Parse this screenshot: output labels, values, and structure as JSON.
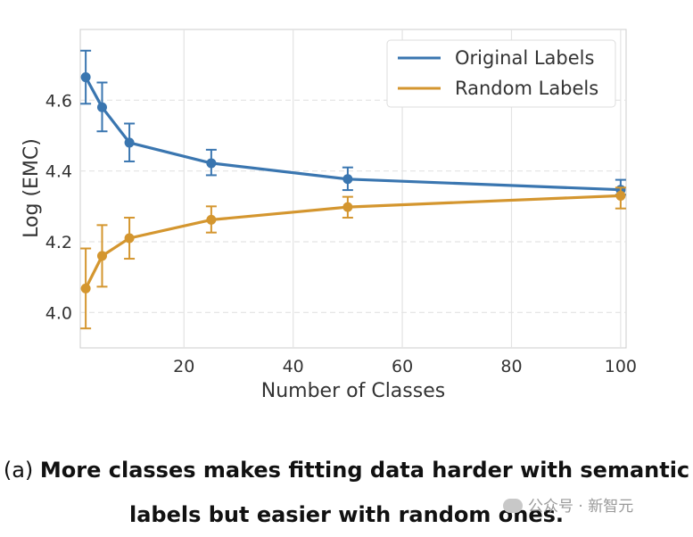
{
  "chart_data": {
    "type": "line",
    "xlabel": "Number of Classes",
    "ylabel": "Log (EMC)",
    "xlim": [
      1,
      101
    ],
    "ylim": [
      3.9,
      4.8
    ],
    "xticks": [
      20,
      40,
      60,
      80,
      100
    ],
    "yticks": [
      4.0,
      4.2,
      4.4,
      4.6
    ],
    "grid": true,
    "legend_position": "top-right",
    "x": [
      2,
      5,
      10,
      25,
      50,
      100
    ],
    "series": [
      {
        "name": "Original Labels",
        "color": "#3a76b0",
        "values": [
          4.665,
          4.58,
          4.48,
          4.422,
          4.377,
          4.347
        ],
        "err_low": [
          4.59,
          4.512,
          4.427,
          4.388,
          4.346,
          4.333
        ],
        "err_high": [
          4.74,
          4.65,
          4.534,
          4.46,
          4.41,
          4.375
        ]
      },
      {
        "name": "Random Labels",
        "color": "#d4962f",
        "values": [
          4.068,
          4.16,
          4.21,
          4.262,
          4.298,
          4.33
        ],
        "err_low": [
          3.955,
          4.073,
          4.152,
          4.226,
          4.268,
          4.294
        ],
        "err_high": [
          4.181,
          4.247,
          4.268,
          4.3,
          4.327,
          4.353
        ]
      }
    ]
  },
  "caption": {
    "prefix": "(a) ",
    "line1": "More classes makes fitting data harder with semantic",
    "line2": "labels but easier with random ones."
  },
  "watermark": "公众号 · 新智元"
}
